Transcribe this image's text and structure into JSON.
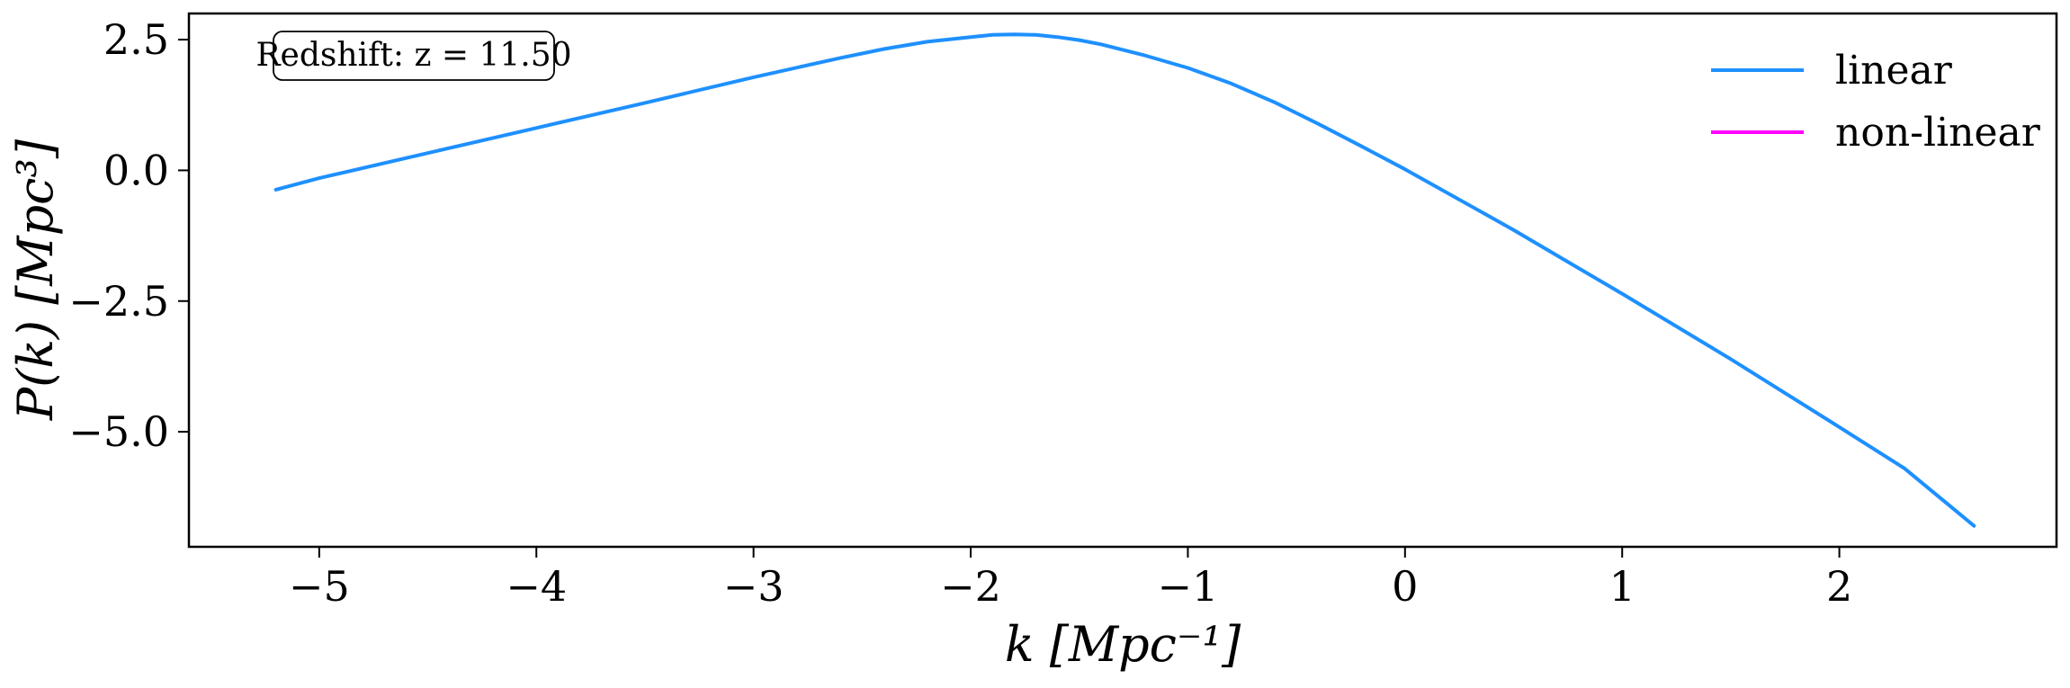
{
  "chart_data": {
    "type": "line",
    "xlabel": "k [Mpc⁻¹]",
    "ylabel": "P(k) [Mpc³]",
    "xlim": [
      -5.6,
      3.0
    ],
    "ylim": [
      -7.2,
      3.0
    ],
    "grid": false,
    "legend_position": "top-right",
    "x_ticks": [
      -5,
      -4,
      -3,
      -2,
      -1,
      0,
      1,
      2
    ],
    "x_tick_labels": [
      "−5",
      "−4",
      "−3",
      "−2",
      "−1",
      "0",
      "1",
      "2"
    ],
    "y_ticks": [
      2.5,
      0.0,
      -2.5,
      -5.0
    ],
    "y_tick_labels": [
      "2.5",
      "0.0",
      "−2.5",
      "−5.0"
    ],
    "annotation": "Redshift: z = 11.50",
    "series": [
      {
        "name": "linear",
        "color": "#1E90FF",
        "x": [
          -5.2,
          -5.0,
          -4.5,
          -4.0,
          -3.5,
          -3.0,
          -2.6,
          -2.4,
          -2.2,
          -2.0,
          -1.9,
          -1.8,
          -1.7,
          -1.6,
          -1.5,
          -1.4,
          -1.2,
          -1.0,
          -0.8,
          -0.6,
          -0.4,
          -0.2,
          0.0,
          0.5,
          1.0,
          1.5,
          2.0,
          2.3,
          2.62
        ],
        "y": [
          -0.37,
          -0.15,
          0.33,
          0.81,
          1.29,
          1.78,
          2.15,
          2.32,
          2.46,
          2.55,
          2.59,
          2.6,
          2.59,
          2.55,
          2.49,
          2.41,
          2.2,
          1.96,
          1.66,
          1.3,
          0.89,
          0.46,
          0.02,
          -1.14,
          -2.36,
          -3.61,
          -4.91,
          -5.7,
          -6.8
        ]
      },
      {
        "name": "non-linear",
        "color": "#FF00FF",
        "x": [],
        "y": []
      }
    ]
  }
}
